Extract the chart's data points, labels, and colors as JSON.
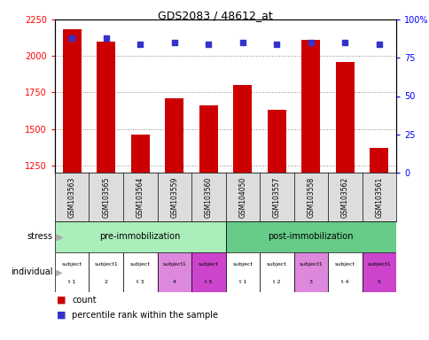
{
  "title": "GDS2083 / 48612_at",
  "samples": [
    "GSM103563",
    "GSM103565",
    "GSM103564",
    "GSM103559",
    "GSM103560",
    "GSM104050",
    "GSM103557",
    "GSM103558",
    "GSM103562",
    "GSM103561"
  ],
  "counts": [
    2185,
    2100,
    1460,
    1710,
    1660,
    1800,
    1630,
    2110,
    1960,
    1370
  ],
  "percentile_ranks": [
    88,
    88,
    84,
    85,
    84,
    85,
    84,
    85,
    85,
    84
  ],
  "ylim_left": [
    1200,
    2250
  ],
  "ylim_right": [
    0,
    100
  ],
  "yticks_left": [
    1250,
    1500,
    1750,
    2000,
    2250
  ],
  "yticks_right": [
    0,
    25,
    50,
    75,
    100
  ],
  "bar_color": "#cc0000",
  "dot_color": "#3333cc",
  "stress_labels": [
    "pre-immobilization",
    "post-immobilization"
  ],
  "stress_groups": [
    5,
    5
  ],
  "stress_colors": [
    "#aaeebb",
    "#66cc88"
  ],
  "individual_labels": [
    "subject\nt 1",
    "subject1\n2",
    "subject\nt 3",
    "subject1\n4",
    "subject\nt 5",
    "subject\nt 1",
    "subject\nt 2",
    "subject1\n3",
    "subject\nt 4",
    "subject1\n5"
  ],
  "individual_colors": [
    "#ffffff",
    "#ffffff",
    "#ffffff",
    "#dd88dd",
    "#cc44cc",
    "#ffffff",
    "#ffffff",
    "#dd88dd",
    "#ffffff",
    "#cc44cc"
  ],
  "sample_bg_color": "#dddddd",
  "grid_color": "#888888",
  "background_color": "#ffffff"
}
